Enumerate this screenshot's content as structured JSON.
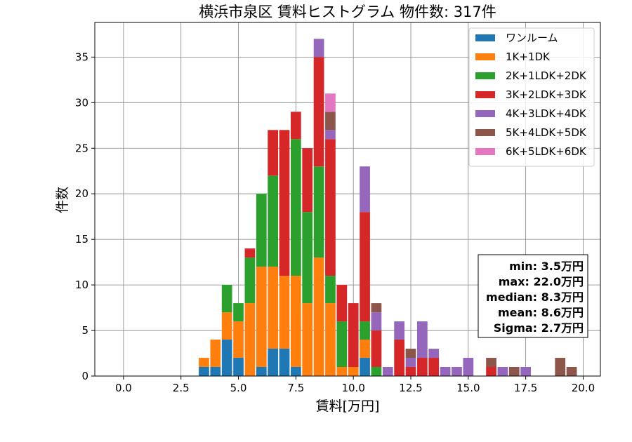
{
  "chart_data": {
    "type": "bar",
    "stacked": true,
    "title": "横浜市泉区 賃料ヒストグラム 物件数: 317件",
    "xlabel": "賃料[万円]",
    "ylabel": "件数",
    "xlim": [
      -1.25,
      20.75
    ],
    "ylim": [
      0,
      38.8
    ],
    "xticks": [
      0.0,
      2.5,
      5.0,
      7.5,
      10.0,
      12.5,
      15.0,
      17.5,
      20.0
    ],
    "xtick_labels": [
      "0.0",
      "2.5",
      "5.0",
      "7.5",
      "10.0",
      "12.5",
      "15.0",
      "17.5",
      "20.0"
    ],
    "yticks": [
      0,
      5,
      10,
      15,
      20,
      25,
      30,
      35
    ],
    "ytick_labels": [
      "0",
      "5",
      "10",
      "15",
      "20",
      "25",
      "30",
      "35"
    ],
    "grid": true,
    "legend_position": "top-right",
    "bin_width": 0.5,
    "x": [
      3.5,
      4.0,
      4.5,
      5.0,
      5.5,
      6.0,
      6.5,
      7.0,
      7.5,
      8.0,
      8.5,
      9.0,
      9.5,
      10.0,
      10.5,
      11.0,
      11.5,
      12.0,
      12.5,
      13.0,
      13.5,
      14.0,
      14.5,
      15.0,
      15.5,
      16.0,
      16.5,
      17.0,
      17.5,
      18.0,
      18.5,
      19.0,
      19.5
    ],
    "series": [
      {
        "name": "ワンルーム",
        "color": "#1f77b4",
        "values": [
          1,
          1,
          4,
          2,
          0,
          1,
          3,
          3,
          1,
          0,
          0,
          0,
          0,
          0,
          2,
          0,
          0,
          0,
          0,
          0,
          0,
          0,
          0,
          0,
          0,
          0,
          0,
          0,
          0,
          0,
          0,
          0,
          0
        ]
      },
      {
        "name": "1K+1DK",
        "color": "#ff7f0e",
        "values": [
          1,
          3,
          3,
          4,
          8,
          11,
          9,
          8,
          10,
          8,
          13,
          8,
          1,
          1,
          2,
          0,
          0,
          0,
          0,
          0,
          0,
          0,
          0,
          0,
          0,
          0,
          0,
          0,
          0,
          0,
          0,
          0,
          0
        ]
      },
      {
        "name": "2K+1LDK+2DK",
        "color": "#2ca02c",
        "values": [
          0,
          0,
          3,
          2,
          5,
          8,
          10,
          0,
          15,
          10,
          10,
          3,
          5,
          0,
          2,
          1,
          0,
          0,
          0,
          0,
          0,
          0,
          0,
          0,
          0,
          0,
          0,
          0,
          0,
          0,
          0,
          0,
          0
        ]
      },
      {
        "name": "3K+2LDK+3DK",
        "color": "#d62728",
        "values": [
          0,
          0,
          0,
          0,
          1,
          0,
          5,
          16,
          3,
          7,
          12,
          15,
          4,
          7,
          12,
          4,
          0,
          4,
          1,
          2,
          2,
          0,
          0,
          0,
          0,
          1,
          0,
          0,
          0,
          0,
          0,
          0,
          0
        ]
      },
      {
        "name": "4K+3LDK+4DK",
        "color": "#9467bd",
        "values": [
          0,
          0,
          0,
          0,
          0,
          0,
          0,
          0,
          0,
          0,
          2,
          1,
          0,
          0,
          5,
          2,
          1,
          2,
          1,
          4,
          1,
          1,
          1,
          2,
          0,
          0,
          1,
          0,
          1,
          0,
          0,
          0,
          0
        ]
      },
      {
        "name": "5K+4LDK+5DK",
        "color": "#8c564b",
        "values": [
          0,
          0,
          0,
          0,
          0,
          0,
          0,
          0,
          0,
          0,
          0,
          2,
          0,
          0,
          0,
          1,
          0,
          0,
          1,
          0,
          0,
          0,
          0,
          0,
          0,
          1,
          0,
          1,
          0,
          0,
          0,
          2,
          1
        ]
      },
      {
        "name": "6K+5LDK+6DK",
        "color": "#e377c2",
        "values": [
          0,
          0,
          0,
          0,
          0,
          0,
          0,
          0,
          0,
          0,
          0,
          2,
          0,
          0,
          0,
          0,
          0,
          0,
          0,
          0,
          0,
          0,
          0,
          0,
          0,
          0,
          0,
          0,
          0,
          0,
          0,
          0,
          0
        ]
      }
    ],
    "stats": [
      "min: 3.5万円",
      "max: 22.0万円",
      "median: 8.3万円",
      "mean: 8.6万円",
      "Sigma: 2.7万円"
    ]
  }
}
